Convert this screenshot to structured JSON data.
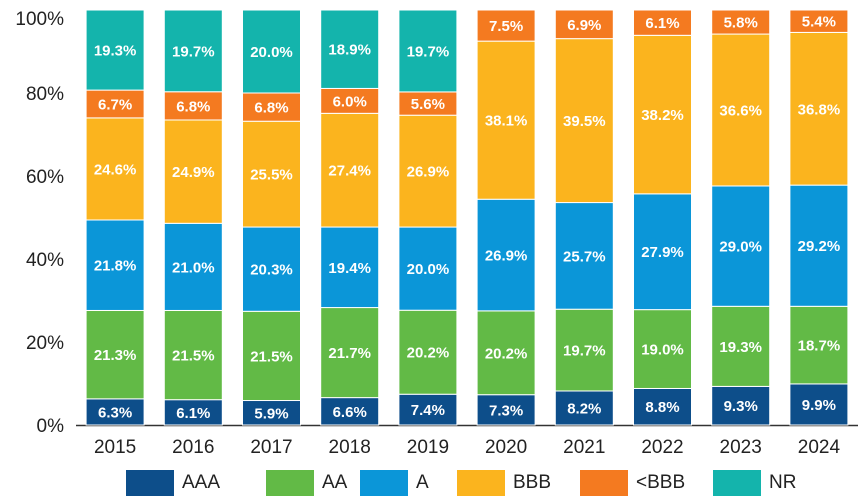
{
  "chart_data": {
    "type": "bar",
    "stacked": true,
    "categories": [
      "2015",
      "2016",
      "2017",
      "2018",
      "2019",
      "2020",
      "2021",
      "2022",
      "2023",
      "2024"
    ],
    "series": [
      {
        "name": "AAA",
        "color": "#0d4e8a",
        "values": [
          6.3,
          6.1,
          5.9,
          6.6,
          7.4,
          7.3,
          8.2,
          8.8,
          9.3,
          9.9
        ],
        "labels": [
          "6.3%",
          "6.1%",
          "5.9%",
          "6.6%",
          "7.4%",
          "7.3%",
          "8.2%",
          "8.8%",
          "9.3%",
          "9.9%"
        ]
      },
      {
        "name": "AA",
        "color": "#62ba46",
        "values": [
          21.3,
          21.5,
          21.5,
          21.7,
          20.2,
          20.2,
          19.7,
          19.0,
          19.3,
          18.7
        ],
        "labels": [
          "21.3%",
          "21.5%",
          "21.5%",
          "21.7%",
          "20.2%",
          "20.2%",
          "19.7%",
          "19.0%",
          "19.3%",
          "18.7%"
        ]
      },
      {
        "name": "A",
        "color": "#0b96d8",
        "values": [
          21.8,
          21.0,
          20.3,
          19.4,
          20.0,
          26.9,
          25.7,
          27.9,
          29.0,
          29.2
        ],
        "labels": [
          "21.8%",
          "21.0%",
          "20.3%",
          "19.4%",
          "20.0%",
          "26.9%",
          "25.7%",
          "27.9%",
          "29.0%",
          "29.2%"
        ]
      },
      {
        "name": "BBB",
        "color": "#fbb41e",
        "values": [
          24.6,
          24.9,
          25.5,
          27.4,
          26.9,
          38.1,
          39.5,
          38.2,
          36.6,
          36.8
        ],
        "labels": [
          "24.6%",
          "24.9%",
          "25.5%",
          "27.4%",
          "26.9%",
          "38.1%",
          "39.5%",
          "38.2%",
          "36.6%",
          "36.8%"
        ]
      },
      {
        "name": "<BBB",
        "color": "#f47a20",
        "values": [
          6.7,
          6.8,
          6.8,
          6.0,
          5.6,
          7.5,
          6.9,
          6.1,
          5.8,
          5.4
        ],
        "labels": [
          "6.7%",
          "6.8%",
          "6.8%",
          "6.0%",
          "5.6%",
          "7.5%",
          "6.9%",
          "6.1%",
          "5.8%",
          "5.4%"
        ]
      },
      {
        "name": "NR",
        "color": "#14b4ac",
        "values": [
          19.3,
          19.7,
          20.0,
          18.9,
          19.7,
          0,
          0,
          0,
          0,
          0
        ],
        "labels": [
          "19.3%",
          "19.7%",
          "20.0%",
          "18.9%",
          "19.7%",
          "",
          "",
          "",
          "",
          ""
        ]
      }
    ],
    "ylim": [
      0,
      100
    ],
    "yticks": [
      "0%",
      "20%",
      "40%",
      "60%",
      "80%",
      "100%"
    ],
    "title": "",
    "xlabel": "",
    "ylabel": "",
    "legend_position": "bottom"
  }
}
